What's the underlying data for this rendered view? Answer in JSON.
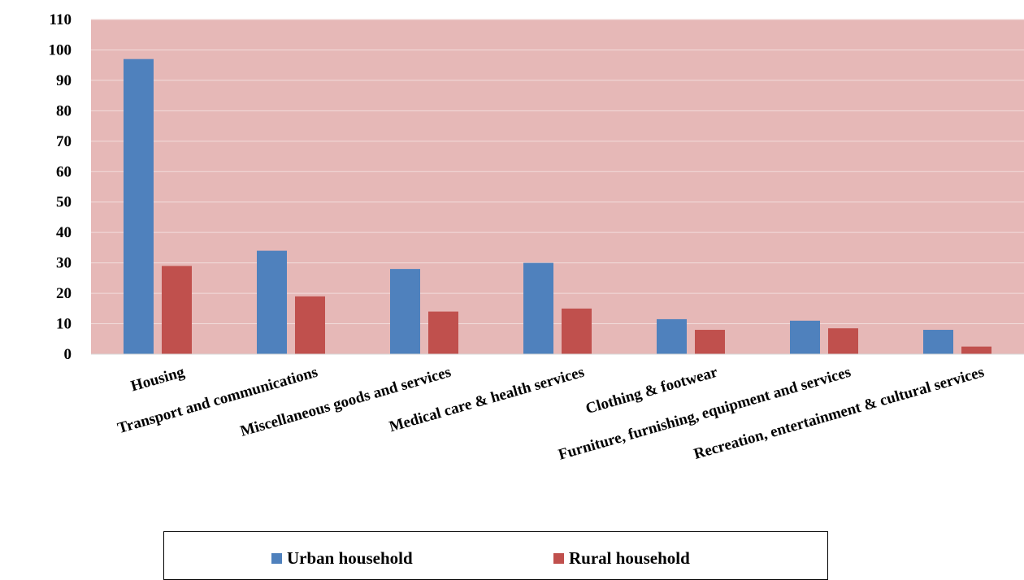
{
  "chart_data": {
    "type": "bar",
    "title": "",
    "xlabel": "",
    "ylabel": "",
    "ylim": [
      0,
      110
    ],
    "yticks": [
      0,
      10,
      20,
      30,
      40,
      50,
      60,
      70,
      80,
      90,
      100,
      110
    ],
    "grid": true,
    "legend_position": "bottom",
    "plot_background": "#e6b8b7",
    "categories": [
      "Housing",
      "Transport and communications",
      "Miscellaneous goods and services",
      "Medical care & health services",
      "Clothing & footwear",
      "Furniture, furnishing, equipment and services",
      "Recreation, entertainment & cultural services"
    ],
    "series": [
      {
        "name": "Urban household",
        "color": "#4f81bd",
        "values": [
          97,
          34,
          28,
          30,
          11.5,
          11,
          8
        ]
      },
      {
        "name": "Rural household",
        "color": "#c0504d",
        "values": [
          29,
          19,
          14,
          15,
          8,
          8.5,
          2.5
        ]
      }
    ]
  }
}
